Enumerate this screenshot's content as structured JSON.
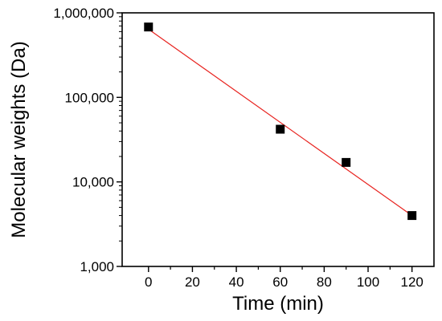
{
  "chart_data": {
    "type": "scatter",
    "xlabel": "Time (min)",
    "ylabel": "Molecular weights (Da)",
    "xlim": [
      -12,
      130
    ],
    "ylim": [
      1000,
      1000000
    ],
    "y_scale": "log",
    "x_ticks": [
      0,
      20,
      40,
      60,
      80,
      100,
      120
    ],
    "x_tick_labels": [
      "0",
      "20",
      "40",
      "60",
      "80",
      "100",
      "120"
    ],
    "y_ticks": [
      1000,
      10000,
      100000,
      1000000
    ],
    "y_tick_labels": [
      "1,000",
      "10,000",
      "100,000",
      "1,000,000"
    ],
    "grid": false,
    "series": [
      {
        "marker": "square",
        "color": "#000000",
        "x": [
          0,
          60,
          90,
          120
        ],
        "y": [
          680000,
          42000,
          17000,
          4000
        ]
      }
    ],
    "fit_line": {
      "color": "#e8231f",
      "x": [
        0,
        120
      ],
      "y": [
        640000,
        4000
      ]
    }
  }
}
